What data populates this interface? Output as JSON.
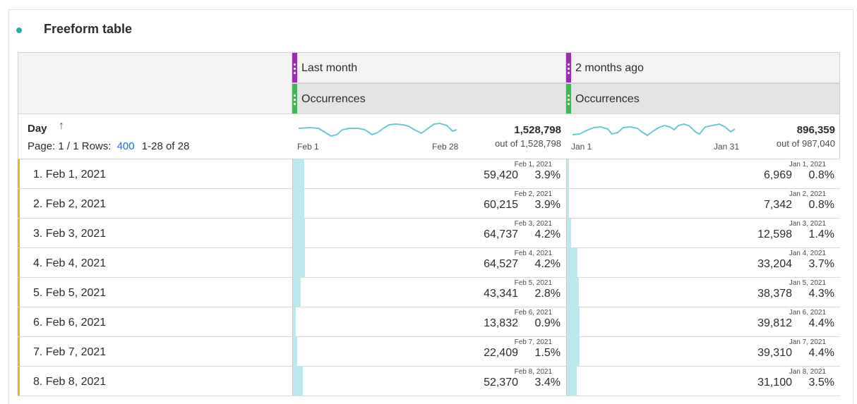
{
  "panel": {
    "title": "Freeform table"
  },
  "columns": [
    {
      "segment": "Last month",
      "metric": "Occurrences",
      "total": "1,528,798",
      "of_total": "out of 1,528,798",
      "spark_start": "Feb 1",
      "spark_end": "Feb 28"
    },
    {
      "segment": "2 months ago",
      "metric": "Occurrences",
      "total": "896,359",
      "of_total": "out of 987,040",
      "spark_start": "Jan 1",
      "spark_end": "Jan 31"
    }
  ],
  "dimension": {
    "title": "Day",
    "sort_icon": "arrow-up-icon"
  },
  "pager": {
    "page_text": "Page: 1 / 1",
    "rows_label": "Rows:",
    "rows_value": "400",
    "range": "1-28 of 28"
  },
  "rows": [
    {
      "label": "1. Feb 1, 2021",
      "a_date": "Feb 1, 2021",
      "a_val": "59,420",
      "a_pct": "3.9%",
      "a_frac": 0.039,
      "b_date": "Jan 1, 2021",
      "b_val": "6,969",
      "b_pct": "0.8%",
      "b_frac": 0.008
    },
    {
      "label": "2. Feb 2, 2021",
      "a_date": "Feb 2, 2021",
      "a_val": "60,215",
      "a_pct": "3.9%",
      "a_frac": 0.039,
      "b_date": "Jan 2, 2021",
      "b_val": "7,342",
      "b_pct": "0.8%",
      "b_frac": 0.008
    },
    {
      "label": "3. Feb 3, 2021",
      "a_date": "Feb 3, 2021",
      "a_val": "64,737",
      "a_pct": "4.2%",
      "a_frac": 0.042,
      "b_date": "Jan 3, 2021",
      "b_val": "12,598",
      "b_pct": "1.4%",
      "b_frac": 0.014
    },
    {
      "label": "4. Feb 4, 2021",
      "a_date": "Feb 4, 2021",
      "a_val": "64,527",
      "a_pct": "4.2%",
      "a_frac": 0.042,
      "b_date": "Jan 4, 2021",
      "b_val": "33,204",
      "b_pct": "3.7%",
      "b_frac": 0.037
    },
    {
      "label": "5. Feb 5, 2021",
      "a_date": "Feb 5, 2021",
      "a_val": "43,341",
      "a_pct": "2.8%",
      "a_frac": 0.028,
      "b_date": "Jan 5, 2021",
      "b_val": "38,378",
      "b_pct": "4.3%",
      "b_frac": 0.043
    },
    {
      "label": "6. Feb 6, 2021",
      "a_date": "Feb 6, 2021",
      "a_val": "13,832",
      "a_pct": "0.9%",
      "a_frac": 0.009,
      "b_date": "Jan 6, 2021",
      "b_val": "39,812",
      "b_pct": "4.4%",
      "b_frac": 0.044
    },
    {
      "label": "7. Feb 7, 2021",
      "a_date": "Feb 7, 2021",
      "a_val": "22,409",
      "a_pct": "1.5%",
      "a_frac": 0.015,
      "b_date": "Jan 7, 2021",
      "b_val": "39,310",
      "b_pct": "4.4%",
      "b_frac": 0.044
    },
    {
      "label": "8. Feb 8, 2021",
      "a_date": "Feb 8, 2021",
      "a_val": "52,370",
      "a_pct": "3.4%",
      "a_frac": 0.034,
      "b_date": "Jan 8, 2021",
      "b_val": "31,100",
      "b_pct": "3.5%",
      "b_frac": 0.035
    }
  ],
  "colors": {
    "accent": "#2aa7b8",
    "bar": "#bde9ee",
    "sparkline": "#6cc8d3",
    "row_accent": "#e3b72a",
    "segment_handle": "#9b2db1",
    "metric_handle": "#44b556",
    "link": "#1473e6"
  }
}
